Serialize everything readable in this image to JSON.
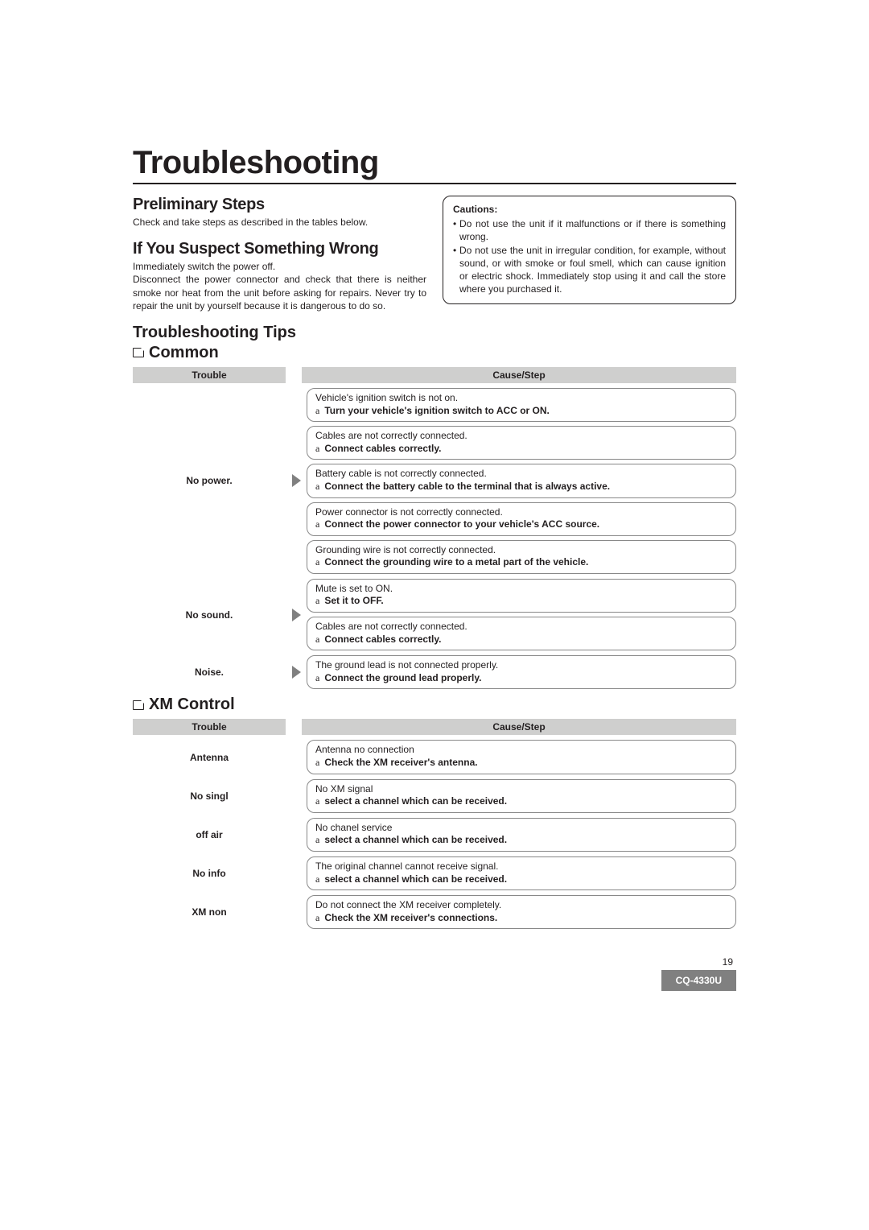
{
  "colors": {
    "text": "#231f20",
    "background": "#ffffff",
    "header_bg": "#cfcfce",
    "box_border": "#888888",
    "arrow": "#808080",
    "badge_bg": "#808080",
    "badge_text": "#ffffff"
  },
  "typography": {
    "title_fontsize": 40,
    "section_fontsize": 20,
    "body_fontsize": 12,
    "font_family": "Arial, Helvetica, sans-serif"
  },
  "title": "Troubleshooting",
  "prelim": {
    "heading": "Preliminary Steps",
    "text": "Check and take steps as described in the tables below."
  },
  "suspect": {
    "heading": "If You Suspect Something Wrong",
    "line1": "Immediately switch the power off.",
    "line2": "Disconnect the power connector and check that there is neither smoke nor heat from the unit before asking for repairs. Never try to repair the unit by yourself because it is dangerous to do so."
  },
  "cautions": {
    "title": "Cautions:",
    "items": [
      "Do not use the unit if it malfunctions or if there is something wrong.",
      "Do not use the unit in irregular condition, for example, without sound, or with smoke or foul smell, which can cause ignition or electric shock. Immediately stop using it and call the store where you purchased it."
    ]
  },
  "tips_heading": "Troubleshooting Tips",
  "common": {
    "heading": "Common",
    "th_trouble": "Trouble",
    "th_cause": "Cause/Step",
    "rows": [
      {
        "trouble": "No power.",
        "causes": [
          {
            "cause": "Vehicle's ignition switch is not on.",
            "step": "Turn your vehicle's ignition switch to ACC or ON."
          },
          {
            "cause": "Cables are not correctly connected.",
            "step": "Connect cables correctly."
          },
          {
            "cause": "Battery cable is not correctly connected.",
            "step": "Connect the battery cable to the terminal that is always active."
          },
          {
            "cause": "Power connector is not correctly connected.",
            "step": "Connect the power connector to your vehicle's ACC source."
          },
          {
            "cause": "Grounding wire is not correctly connected.",
            "step": "Connect the grounding wire to a metal part of the vehicle."
          }
        ]
      },
      {
        "trouble": "No sound.",
        "causes": [
          {
            "cause": "Mute is set to ON.",
            "step": "Set it to OFF."
          },
          {
            "cause": "Cables are not correctly connected.",
            "step": "Connect cables correctly."
          }
        ]
      },
      {
        "trouble": "Noise.",
        "causes": [
          {
            "cause": "The ground lead is not connected properly.",
            "step": "Connect the ground lead properly."
          }
        ]
      }
    ]
  },
  "xm": {
    "heading": "XM Control",
    "th_trouble": "Trouble",
    "th_cause": "Cause/Step",
    "rows": [
      {
        "trouble": "Antenna",
        "causes": [
          {
            "cause": "Antenna no connection",
            "step": "Check the XM receiver's antenna."
          }
        ]
      },
      {
        "trouble": "No singl",
        "causes": [
          {
            "cause": "No XM signal",
            "step": "select a channel which can be received."
          }
        ]
      },
      {
        "trouble": "off air",
        "causes": [
          {
            "cause": "No chanel service",
            "step": "select a channel which can be received."
          }
        ]
      },
      {
        "trouble": "No info",
        "causes": [
          {
            "cause": "The original channel cannot receive signal.",
            "step": "select a channel which can be received."
          }
        ]
      },
      {
        "trouble": "XM non",
        "causes": [
          {
            "cause": "Do not connect the XM receiver completely.",
            "step": "Check the XM receiver's connections."
          }
        ]
      }
    ]
  },
  "footer": {
    "page_number": "19",
    "model": "CQ-4330U"
  }
}
